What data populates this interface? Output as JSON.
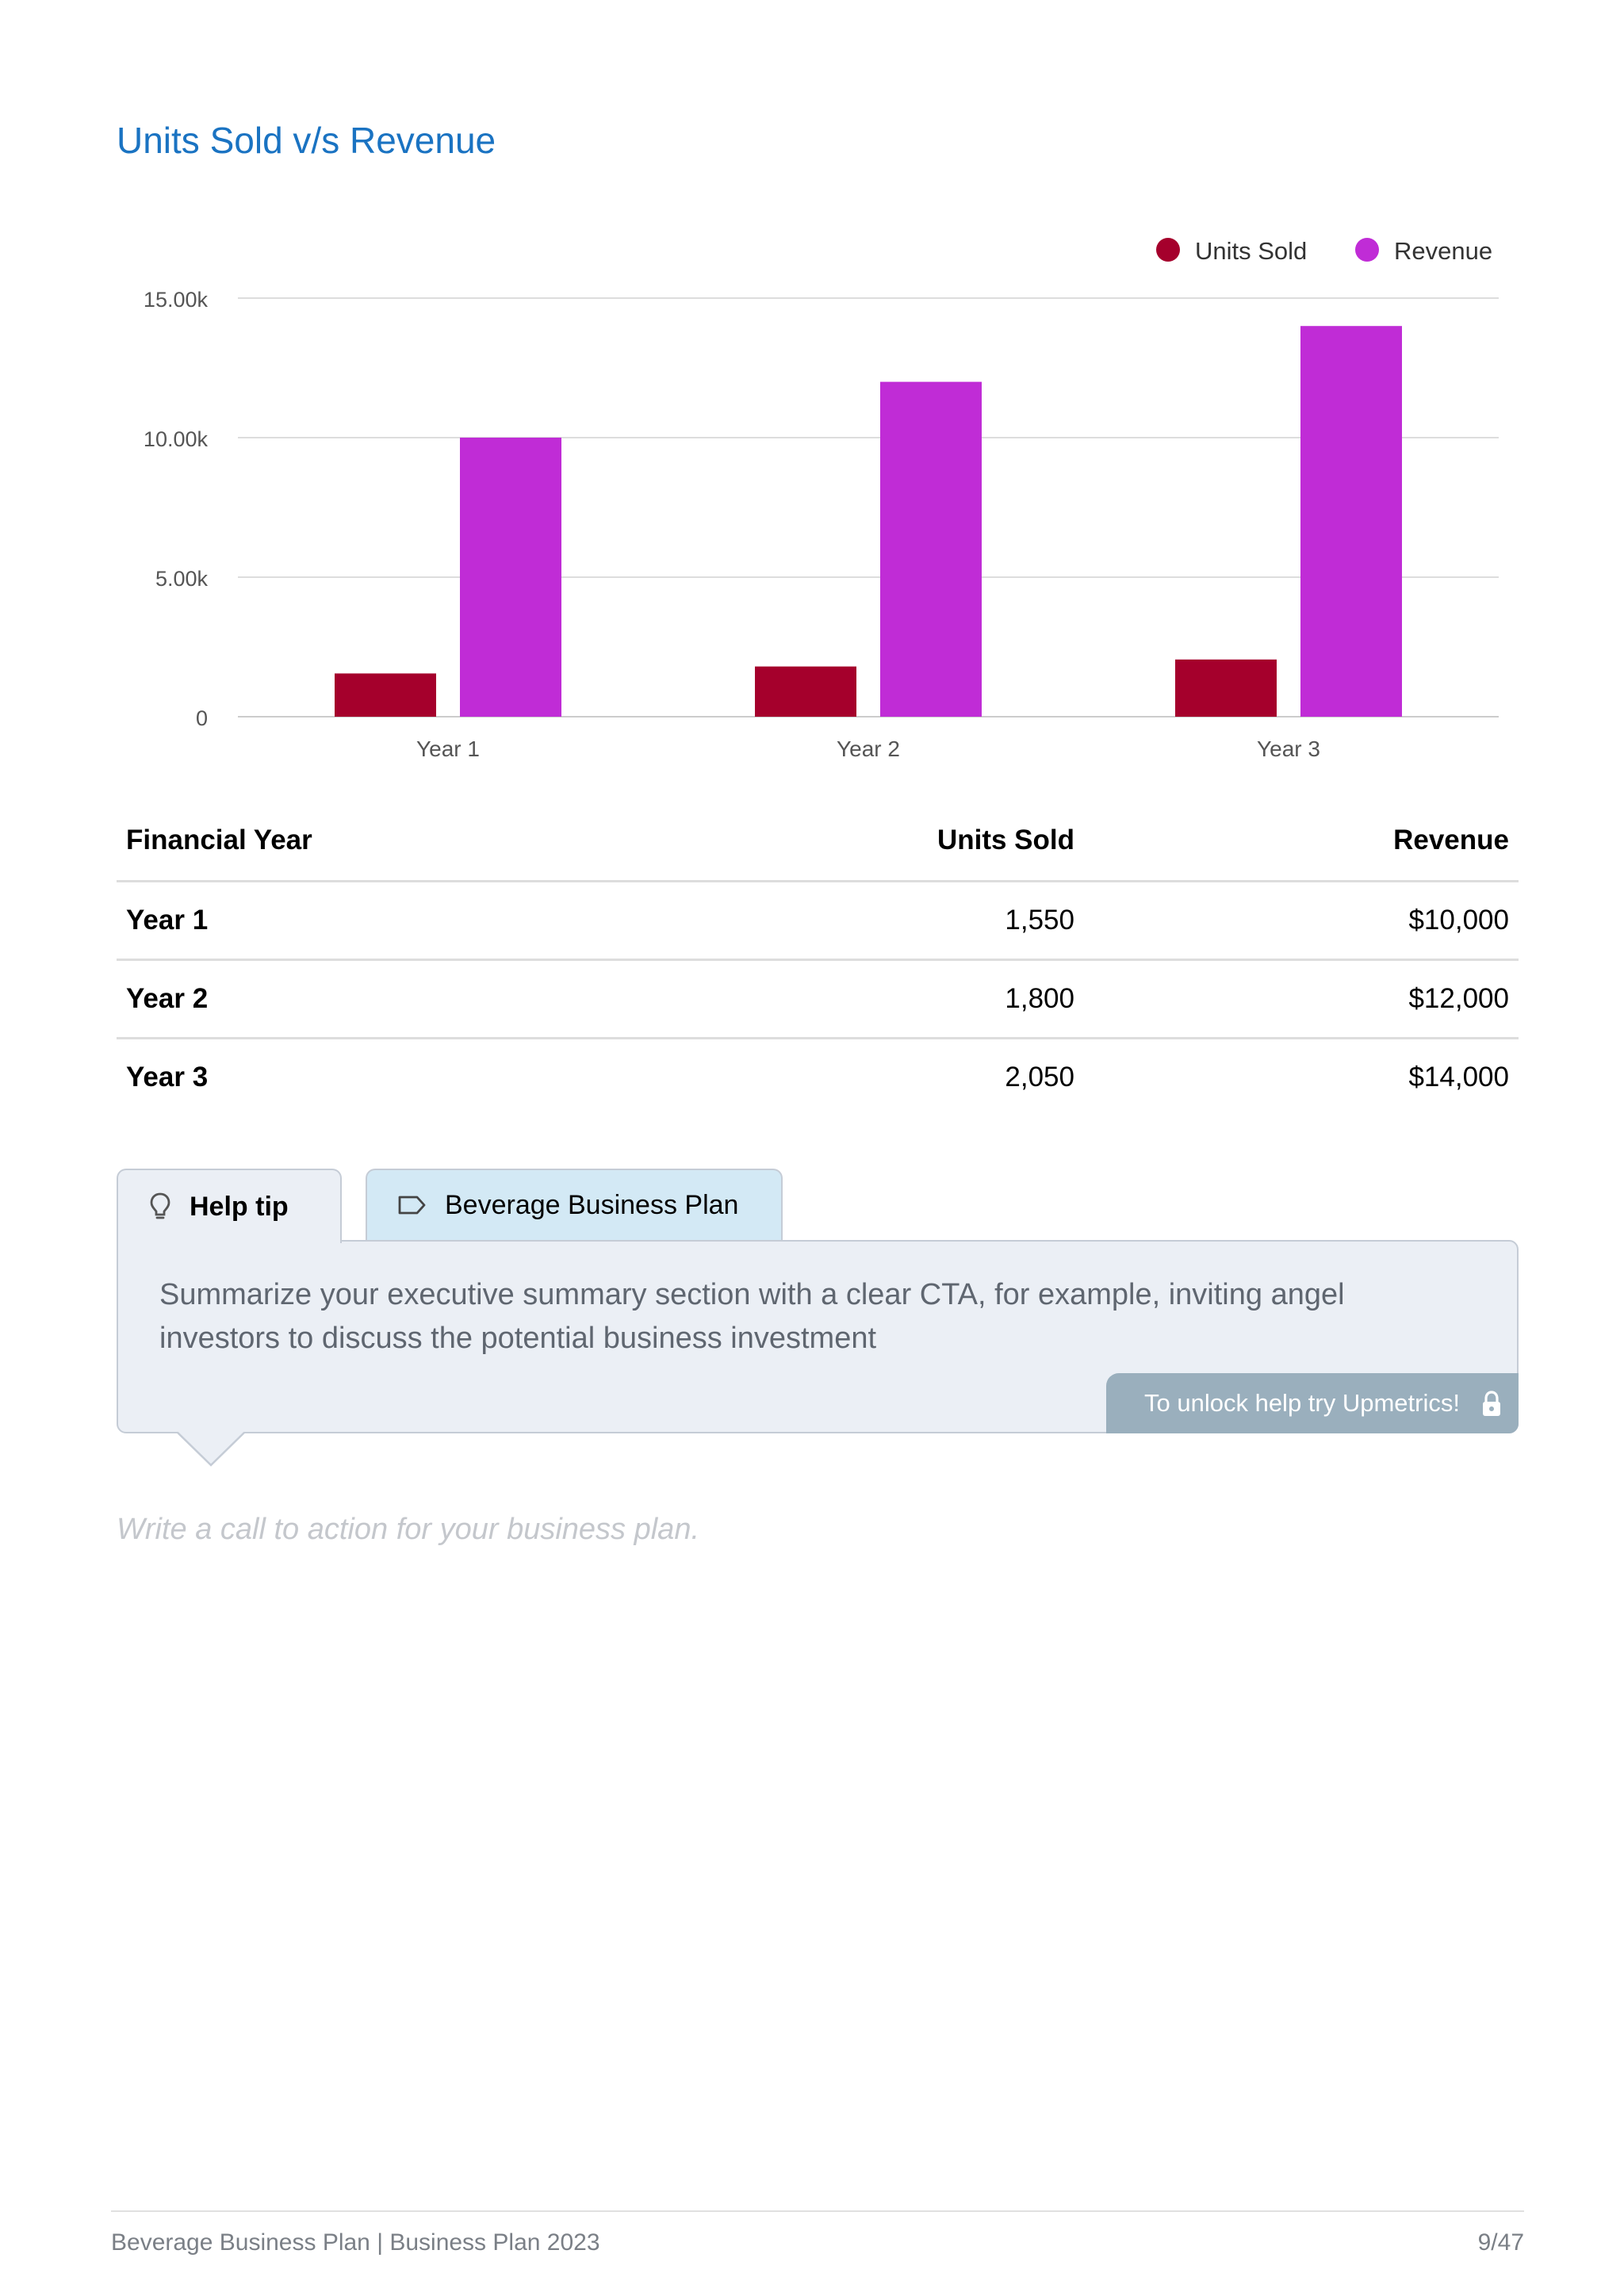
{
  "section": {
    "title": "Units Sold v/s Revenue"
  },
  "chart_data": {
    "type": "bar",
    "categories": [
      "Year 1",
      "Year 2",
      "Year 3"
    ],
    "series": [
      {
        "name": "Units Sold",
        "values": [
          1550,
          1800,
          2050
        ],
        "color": "#a5002c"
      },
      {
        "name": "Revenue",
        "values": [
          10000,
          12000,
          14000
        ],
        "color": "#c02cd6"
      }
    ],
    "title": "Units Sold v/s Revenue",
    "xlabel": "",
    "ylabel": "",
    "ylim": [
      0,
      15000
    ],
    "yticks": [
      {
        "value": 0,
        "label": "0"
      },
      {
        "value": 5000,
        "label": "5.00k"
      },
      {
        "value": 10000,
        "label": "10.00k"
      },
      {
        "value": 15000,
        "label": "15.00k"
      }
    ],
    "grid": true,
    "legend_position": "top-right"
  },
  "table": {
    "headers": [
      "Financial Year",
      "Units Sold",
      "Revenue"
    ],
    "rows": [
      [
        "Year 1",
        "1,550",
        "$10,000"
      ],
      [
        "Year 2",
        "1,800",
        "$12,000"
      ],
      [
        "Year 3",
        "2,050",
        "$14,000"
      ]
    ]
  },
  "help": {
    "tab_help_label": "Help tip",
    "tab_help_icon": "lightbulb-icon",
    "tab_plan_label": "Beverage Business Plan",
    "tab_plan_icon": "tag-icon",
    "tip_text": "Summarize your executive summary section with a clear CTA, for example, inviting angel investors to discuss the potential business investment",
    "unlock_label": "To unlock help try Upmetrics!",
    "unlock_icon": "lock-icon"
  },
  "cta": {
    "placeholder": "Write a call to action for your business plan."
  },
  "footer": {
    "left": "Beverage Business Plan | Business Plan 2023",
    "right": "9/47"
  }
}
